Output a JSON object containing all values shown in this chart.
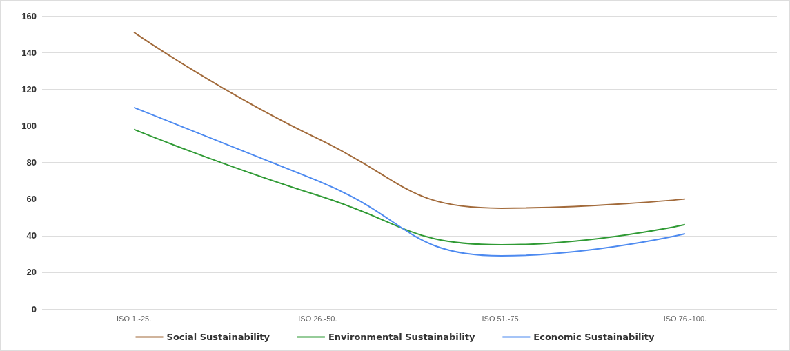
{
  "chart_data": {
    "type": "line",
    "categories": [
      "ISO 1.-25.",
      "ISO 26.-50.",
      "ISO 51.-75.",
      "ISO 76.-100."
    ],
    "series": [
      {
        "name": "Social Sustainability",
        "color": "#a26a3a",
        "values": [
          151,
          93,
          55,
          60
        ]
      },
      {
        "name": "Environmental Sustainability",
        "color": "#2f9a34",
        "values": [
          98,
          62,
          35,
          46
        ]
      },
      {
        "name": "Economic Sustainability",
        "color": "#4d8af0",
        "values": [
          110,
          70,
          29,
          41
        ]
      }
    ],
    "ylim": [
      0,
      160
    ],
    "yticks": [
      0,
      20,
      40,
      60,
      80,
      100,
      120,
      140,
      160
    ],
    "grid": "y",
    "legend": "bottom",
    "marker": "none",
    "line_style": "solid"
  }
}
